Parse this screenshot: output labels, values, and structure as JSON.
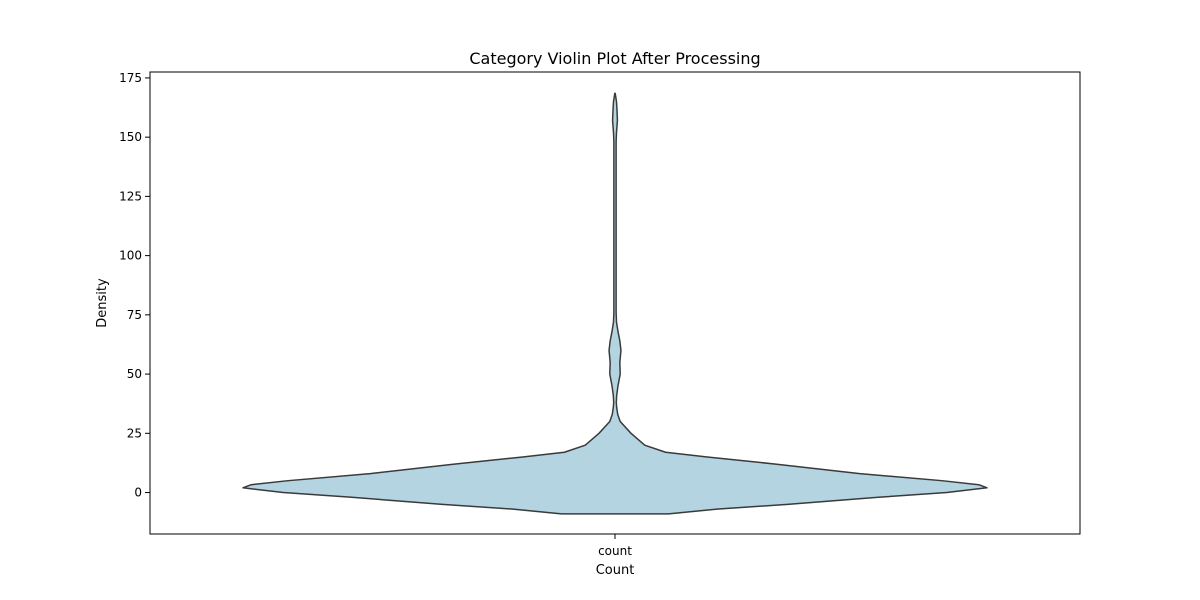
{
  "chart_data": {
    "type": "violin",
    "title": "Category Violin Plot After Processing",
    "xlabel": "Count",
    "ylabel": "Density",
    "categories": [
      "count"
    ],
    "ylim": [
      -17.5,
      177.5
    ],
    "yticks": [
      0,
      25,
      50,
      75,
      100,
      125,
      150,
      175
    ],
    "fill_color": "#b3d4e0",
    "edge_color": "#3a3a3a",
    "violins": [
      {
        "category": "count",
        "profile_y": [
          -9,
          -7,
          -5,
          -2,
          0,
          2,
          3.3,
          5,
          8,
          12,
          15,
          17,
          20,
          25,
          30,
          33,
          36,
          38,
          41,
          45,
          50,
          55,
          60,
          64,
          68,
          72,
          76,
          80,
          90,
          110,
          130,
          148,
          152,
          157,
          161,
          165,
          168.5
        ],
        "half_width_fraction": [
          0.144,
          0.274,
          0.464,
          0.708,
          0.892,
          1.0,
          0.978,
          0.879,
          0.658,
          0.432,
          0.248,
          0.136,
          0.08,
          0.043,
          0.014,
          0.0073,
          0.0045,
          0.0035,
          0.0045,
          0.008,
          0.014,
          0.013,
          0.016,
          0.013,
          0.008,
          0.004,
          0.003,
          0.003,
          0.003,
          0.003,
          0.003,
          0.003,
          0.004,
          0.0065,
          0.0055,
          0.004,
          0.0005
        ]
      }
    ]
  }
}
